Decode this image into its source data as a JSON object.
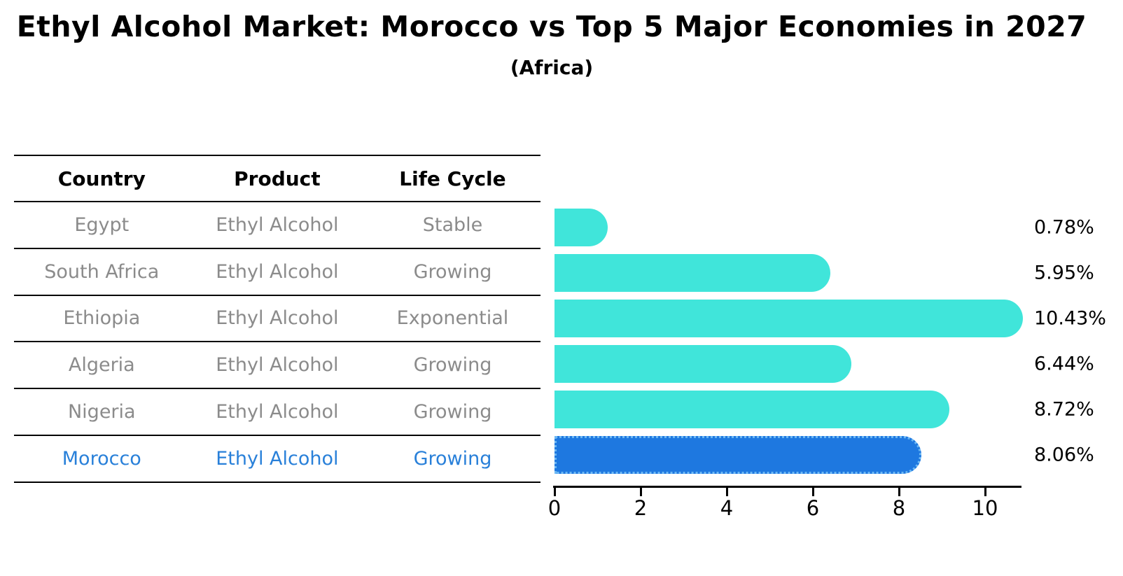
{
  "header": {
    "title": "Ethyl Alcohol Market: Morocco vs Top 5 Major Economies in 2027",
    "subtitle": "(Africa)"
  },
  "table": {
    "columns": [
      "Country",
      "Product",
      "Life Cycle"
    ],
    "rows": [
      [
        "Egypt",
        "Ethyl Alcohol",
        "Stable"
      ],
      [
        "South Africa",
        "Ethyl Alcohol",
        "Growing"
      ],
      [
        "Ethiopia",
        "Ethyl Alcohol",
        "Exponential"
      ],
      [
        "Algeria",
        "Ethyl Alcohol",
        "Growing"
      ],
      [
        "Nigeria",
        "Ethyl Alcohol",
        "Growing"
      ],
      [
        "Morocco",
        "Ethyl Alcohol",
        "Growing"
      ]
    ],
    "highlighted_country": "Morocco"
  },
  "chart_data": {
    "type": "bar",
    "orientation": "horizontal",
    "title": "Ethyl Alcohol Market: Morocco vs Top 5 Major Economies in 2027",
    "subtitle": "(Africa)",
    "categories": [
      "Egypt",
      "South Africa",
      "Ethiopia",
      "Algeria",
      "Nigeria",
      "Morocco"
    ],
    "values": [
      0.78,
      5.95,
      10.43,
      6.44,
      8.72,
      8.06
    ],
    "value_labels": [
      "0.78%",
      "5.95%",
      "10.43%",
      "6.44%",
      "8.72%",
      "8.06%"
    ],
    "x_ticks": [
      "0",
      "2",
      "4",
      "6",
      "8",
      "10"
    ],
    "xlim": [
      0,
      10.85
    ],
    "grid": false,
    "legend": false,
    "highlight_index": 5,
    "colors": {
      "bar": "#40E5DA",
      "highlight_bar": "#1E78E0",
      "highlight_bar_edge": "#6CB8F4",
      "highlight_text": "#2980D9",
      "row_text": "#8B8B8B",
      "axis": "#000000",
      "text": "#000000"
    }
  }
}
